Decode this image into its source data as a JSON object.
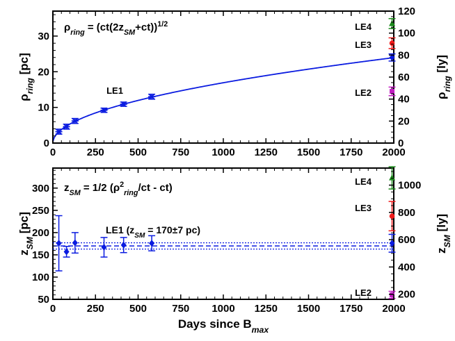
{
  "chart_data": [
    {
      "panel": "top",
      "type": "scatter",
      "title": "",
      "xlabel": "",
      "ylabel_left": "ρring [pc]",
      "ylabel_right": "ρring [ly]",
      "xlim": [
        0,
        2000
      ],
      "ylim_left": [
        0,
        37
      ],
      "ylim_right": [
        0,
        120
      ],
      "x_ticks": [
        "0",
        "250",
        "500",
        "750",
        "1000",
        "1250",
        "1500",
        "1750",
        "2000"
      ],
      "y_left_ticks": [
        "0",
        "10",
        "20",
        "30"
      ],
      "y_right_ticks": [
        "0",
        "20",
        "40",
        "60",
        "80",
        "100",
        "120"
      ],
      "formula_text": "ρring = (ct(2zSM+ct))1/2",
      "series": [
        {
          "name": "LE1",
          "color": "#0a1be0",
          "x": [
            35,
            80,
            130,
            300,
            415,
            580,
            1990
          ],
          "y": [
            3.2,
            4.6,
            6.2,
            9.2,
            10.9,
            13.0,
            24.0
          ],
          "yerr": [
            0.7,
            0.7,
            0.7,
            0.6,
            0.6,
            0.7,
            1.0
          ]
        },
        {
          "name": "LE2",
          "color": "#c21bc2",
          "x": [
            1990
          ],
          "y": [
            14.5
          ],
          "yerr": [
            1.2
          ]
        },
        {
          "name": "LE3",
          "color": "#ef1a1a",
          "x": [
            1990
          ],
          "y": [
            28.0
          ],
          "yerr": [
            1.5
          ]
        },
        {
          "name": "LE4",
          "color": "#1b8a1b",
          "x": [
            1990
          ],
          "y": [
            33.5
          ],
          "yerr": [
            1.4
          ]
        }
      ],
      "fit_curve": {
        "name": "LE1 fit",
        "color": "#0a1be0",
        "z_pc": 170
      },
      "labels": [
        {
          "text": "LE1",
          "color": "#0a1be0"
        },
        {
          "text": "LE2",
          "color": "#c21bc2"
        },
        {
          "text": "LE3",
          "color": "#ef1a1a"
        },
        {
          "text": "LE4",
          "color": "#1b8a1b"
        }
      ]
    },
    {
      "panel": "bottom",
      "type": "scatter",
      "xlabel": "Days since Bmax",
      "ylabel_left": "zSM [pc]",
      "ylabel_right": "zSM [ly]",
      "xlim": [
        0,
        2000
      ],
      "ylim_left": [
        50,
        345
      ],
      "ylim_right": [
        163,
        1125
      ],
      "x_ticks": [
        "0",
        "250",
        "500",
        "750",
        "1000",
        "1250",
        "1500",
        "1750",
        "2000"
      ],
      "y_left_ticks": [
        "50",
        "100",
        "150",
        "200",
        "250",
        "300"
      ],
      "y_right_ticks": [
        "200",
        "400",
        "600",
        "800",
        "1000"
      ],
      "formula_text": "zSM = 1/2 (ρ2ring/ct - ct)",
      "mean_text": "LE1 (zSM = 170±7 pc)",
      "mean_line": {
        "value": 170,
        "err": 7,
        "color": "#0a1be0"
      },
      "series": [
        {
          "name": "LE1",
          "color": "#0a1be0",
          "x": [
            35,
            80,
            130,
            300,
            415,
            580,
            1990
          ],
          "y": [
            176,
            157,
            177,
            167,
            172,
            176,
            176
          ],
          "yerr_up": [
            62,
            12,
            23,
            22,
            17,
            17,
            20
          ],
          "yerr_down": [
            62,
            12,
            23,
            22,
            17,
            17,
            20
          ]
        },
        {
          "name": "LE2",
          "color": "#c21bc2",
          "x": [
            1990
          ],
          "y": [
            60
          ],
          "yerr_up": [
            8
          ],
          "yerr_down": [
            8
          ]
        },
        {
          "name": "LE3",
          "color": "#ef1a1a",
          "x": [
            1990
          ],
          "y": [
            237
          ],
          "yerr_up": [
            33
          ],
          "yerr_down": [
            33
          ]
        },
        {
          "name": "LE4",
          "color": "#1b8a1b",
          "x": [
            1990
          ],
          "y": [
            323
          ],
          "yerr_up": [
            25
          ],
          "yerr_down": [
            25
          ]
        }
      ],
      "labels": [
        {
          "text": "LE2",
          "color": "#c21bc2"
        },
        {
          "text": "LE3",
          "color": "#ef1a1a"
        },
        {
          "text": "LE4",
          "color": "#1b8a1b"
        }
      ]
    }
  ]
}
